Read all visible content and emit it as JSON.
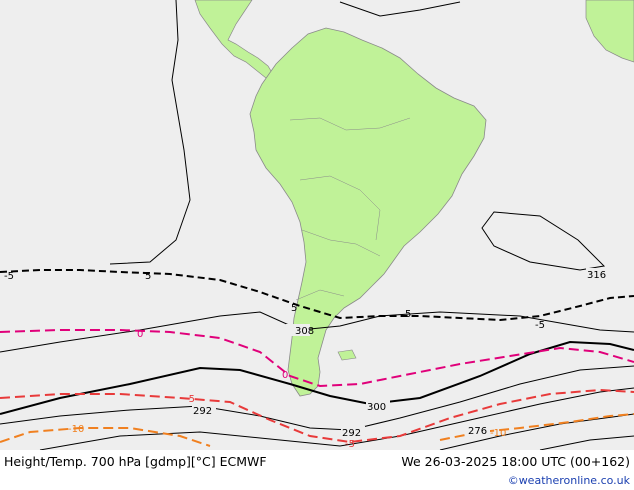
{
  "caption": {
    "left": "Height/Temp. 700 hPa [gdmp][°C] ECMWF",
    "right": "We 26-03-2025 18:00 UTC (00+162)",
    "credit": "©weatheronline.co.uk"
  },
  "colors": {
    "ocean": "#eeeeee",
    "land": "#c0f298",
    "coast": "#8a8a8a",
    "height_contour": "#000000",
    "temp_0": "#e0007a",
    "temp_minus5": "#e83a3a",
    "temp_minus10": "#f08020",
    "temp_5": "#000000"
  },
  "height_contour_labels": [
    "308",
    "316",
    "300",
    "292",
    "292",
    "276"
  ],
  "temperature_contour_labels": [
    "-5",
    "5",
    "5",
    "5",
    "-5",
    "0",
    "0",
    "-5",
    "-5",
    "-10",
    "-10"
  ]
}
